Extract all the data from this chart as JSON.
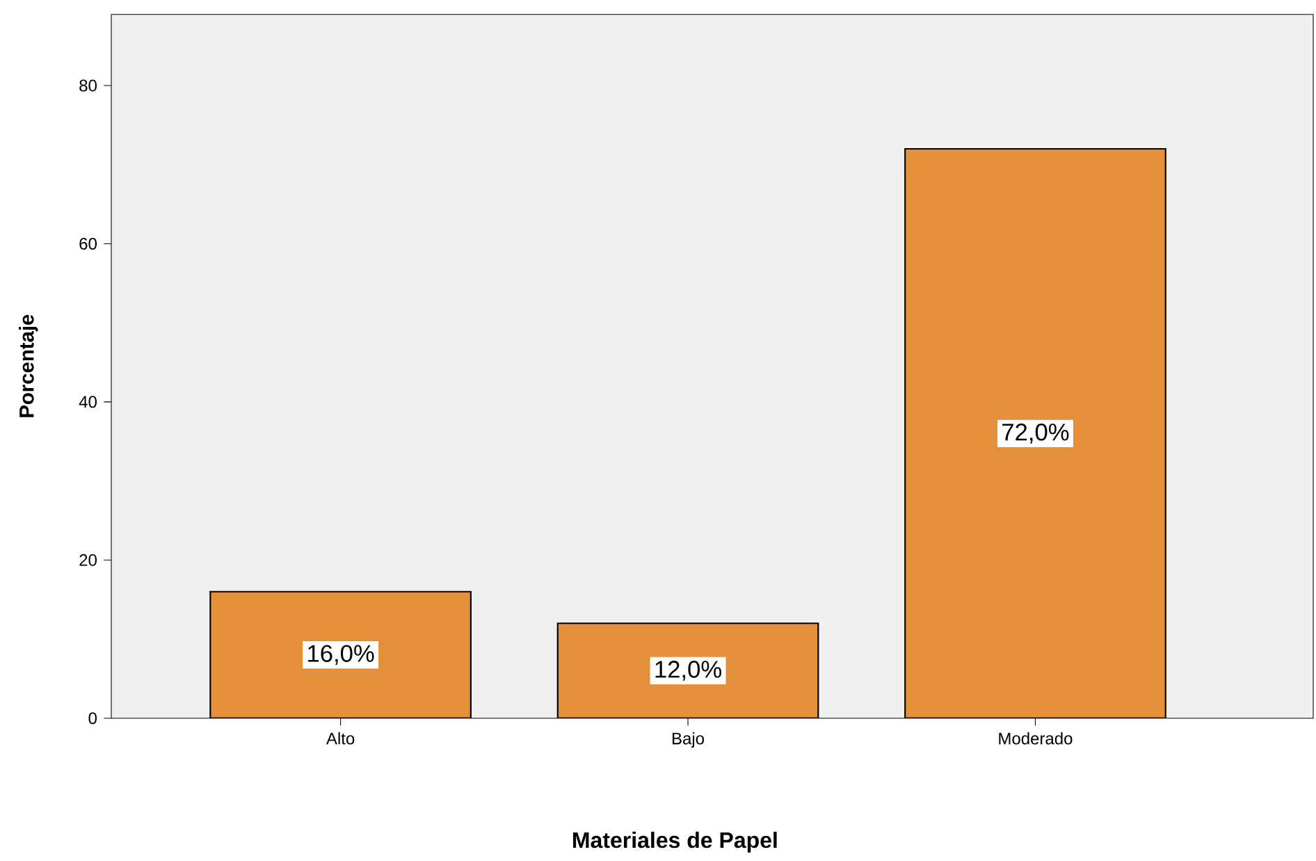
{
  "chart_data": {
    "type": "bar",
    "xlabel": "Materiales de Papel",
    "ylabel": "Porcentaje",
    "categories": [
      "Alto",
      "Bajo",
      "Moderado"
    ],
    "values": [
      16,
      12,
      72
    ],
    "color": "#e48f3a",
    "value_labels": [
      "16,0%",
      "12,0%",
      "72,0%"
    ],
    "ylim": [
      0,
      89
    ],
    "yticks": [
      0,
      20,
      40,
      60,
      80
    ],
    "grid": false
  }
}
